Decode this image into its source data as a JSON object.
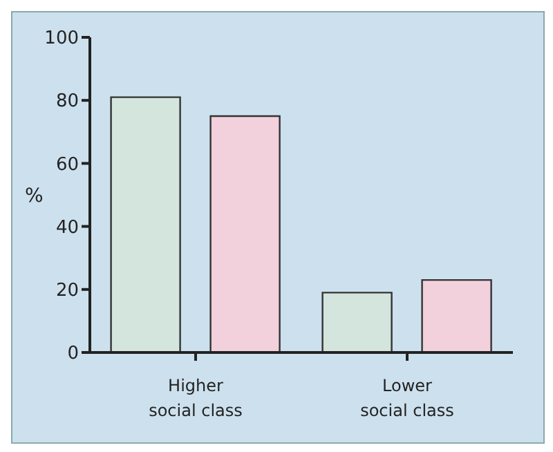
{
  "chart_data": {
    "type": "bar",
    "ylabel": "%",
    "categories": [
      "Higher social class",
      "Lower social class"
    ],
    "series": [
      {
        "color": "#d3e5dc",
        "values": [
          81,
          19
        ]
      },
      {
        "color": "#f2d0dc",
        "values": [
          75,
          23
        ]
      }
    ],
    "ylim": [
      0,
      100
    ],
    "yticks": [
      0,
      20,
      40,
      60,
      80,
      100
    ],
    "grid": false,
    "legend": false
  }
}
